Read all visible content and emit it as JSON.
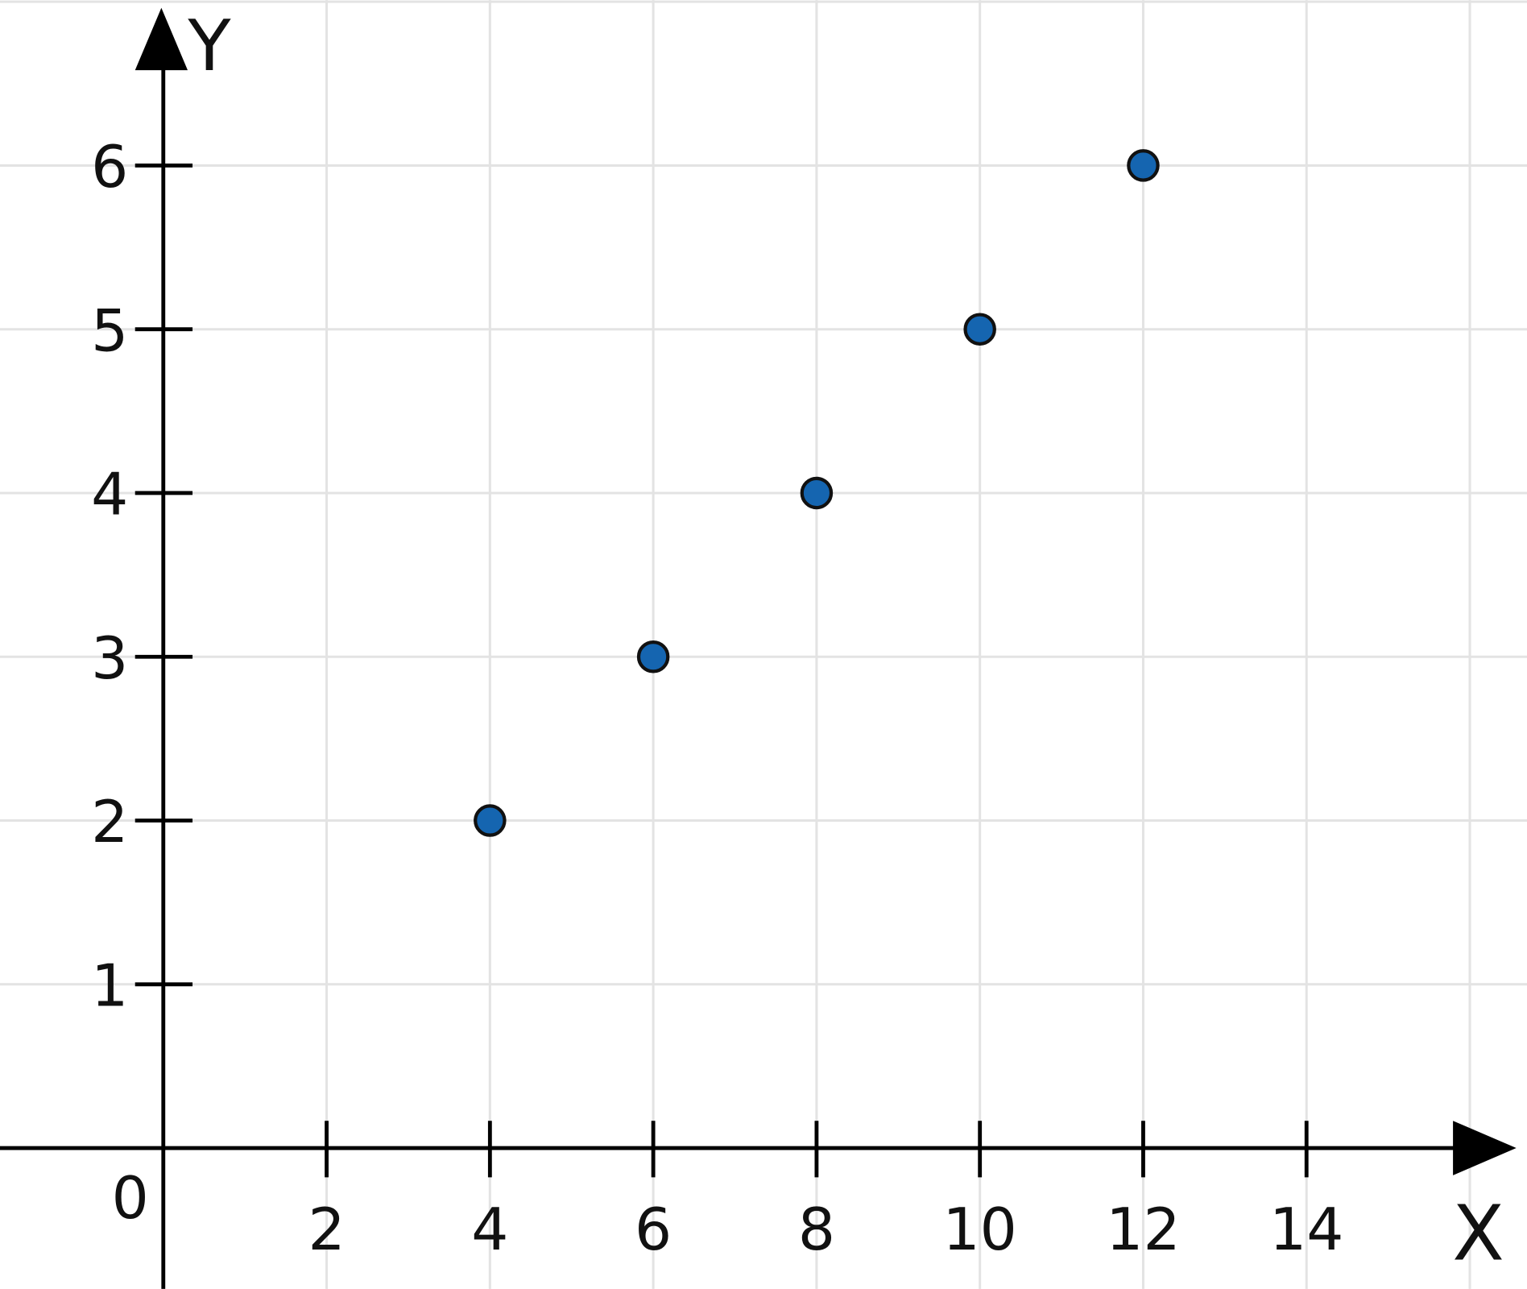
{
  "chart_data": {
    "type": "scatter",
    "x_label": "X",
    "y_label": "Y",
    "x": [
      4,
      6,
      8,
      10,
      12
    ],
    "values": [
      2,
      3,
      4,
      5,
      6
    ],
    "color": "#1565b0",
    "xlim": [
      -2,
      16.7
    ],
    "ylim": [
      -0.86,
      7.01
    ],
    "xticks": [
      0,
      2,
      4,
      6,
      8,
      10,
      12,
      14
    ],
    "yticks": [
      1,
      2,
      3,
      4,
      5,
      6
    ],
    "xgrid": [
      2,
      4,
      6,
      8,
      10,
      12,
      14,
      16
    ],
    "ygrid": [
      1,
      2,
      3,
      4,
      5,
      6,
      7
    ],
    "grid": true
  }
}
